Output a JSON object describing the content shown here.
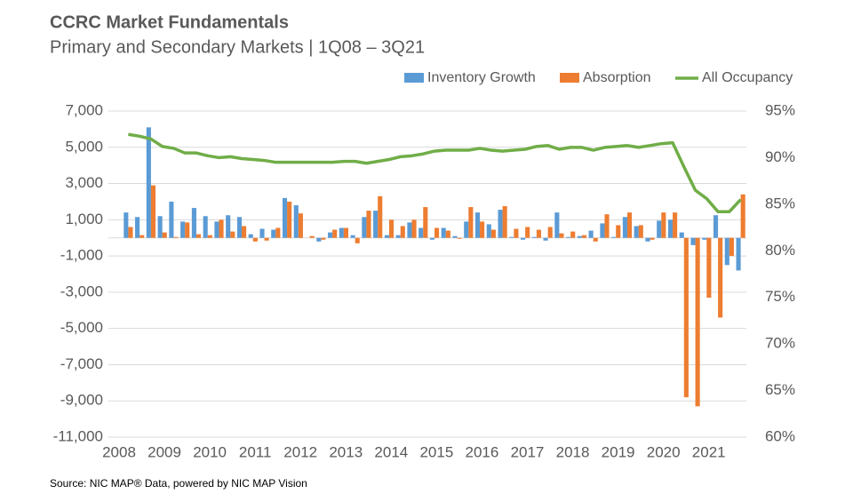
{
  "chart_data": {
    "type": "bar_line",
    "title": "CCRC Market Fundamentals",
    "subtitle": "Primary and Secondary Markets | 1Q08 – 3Q21",
    "source": "Source: NIC MAP® Data, powered by NIC MAP Vision",
    "categories": [
      "2008",
      null,
      null,
      null,
      "2009",
      null,
      null,
      null,
      "2010",
      null,
      null,
      null,
      "2011",
      null,
      null,
      null,
      "2012",
      null,
      null,
      null,
      "2013",
      null,
      null,
      null,
      "2014",
      null,
      null,
      null,
      "2015",
      null,
      null,
      null,
      "2016",
      null,
      null,
      null,
      "2017",
      null,
      null,
      null,
      "2018",
      null,
      null,
      null,
      "2019",
      null,
      null,
      null,
      "2020",
      null,
      null,
      null,
      "2021",
      null,
      null
    ],
    "series": [
      {
        "name": "Inventory Growth",
        "color": "#5b9bd5",
        "type": "bar",
        "values": [
          1400,
          1150,
          6100,
          1200,
          2000,
          900,
          1650,
          1200,
          900,
          1250,
          1150,
          200,
          500,
          450,
          2200,
          1800,
          0,
          -200,
          300,
          550,
          150,
          1150,
          1500,
          150,
          150,
          850,
          550,
          -100,
          550,
          100,
          900,
          1400,
          750,
          1550,
          50,
          -100,
          50,
          -150,
          1400,
          50,
          100,
          400,
          800,
          50,
          1150,
          650,
          -200,
          950,
          1000,
          300,
          -400,
          -100,
          1250,
          -1500,
          -1800
        ]
      },
      {
        "name": "Absorption",
        "color": "#ed7d31",
        "type": "bar",
        "values": [
          600,
          150,
          2900,
          300,
          50,
          850,
          200,
          150,
          1000,
          350,
          650,
          -200,
          -150,
          550,
          2000,
          1350,
          100,
          -100,
          450,
          550,
          -300,
          1500,
          2300,
          1000,
          650,
          1000,
          1700,
          550,
          400,
          -50,
          1700,
          900,
          450,
          1750,
          500,
          600,
          450,
          600,
          250,
          350,
          150,
          -200,
          1300,
          700,
          1400,
          700,
          -100,
          1400,
          1400,
          -8800,
          -9300,
          -3300,
          -4400,
          -1000,
          2400
        ]
      },
      {
        "name": "All Occupancy",
        "color": "#70ad47",
        "type": "line",
        "axis": "y2",
        "values": [
          92.5,
          92.3,
          92.0,
          91.2,
          91.0,
          90.5,
          90.5,
          90.2,
          90.0,
          90.1,
          89.9,
          89.8,
          89.7,
          89.5,
          89.5,
          89.5,
          89.5,
          89.5,
          89.5,
          89.6,
          89.6,
          89.4,
          89.6,
          89.8,
          90.1,
          90.2,
          90.4,
          90.7,
          90.8,
          90.8,
          90.8,
          91.0,
          90.8,
          90.7,
          90.8,
          90.9,
          91.2,
          91.3,
          90.9,
          91.1,
          91.1,
          90.8,
          91.1,
          91.2,
          91.3,
          91.1,
          91.3,
          91.5,
          91.6,
          89.0,
          86.5,
          85.6,
          84.2,
          84.2,
          85.5
        ]
      }
    ],
    "ylim": [
      -11000,
      7000
    ],
    "yticks": [
      {
        "value": -11000,
        "label": "-11,000"
      },
      {
        "value": -9000,
        "label": "-9,000"
      },
      {
        "value": -7000,
        "label": "-7,000"
      },
      {
        "value": -5000,
        "label": "-5,000"
      },
      {
        "value": -3000,
        "label": "-3,000"
      },
      {
        "value": -1000,
        "label": "-1,000"
      },
      {
        "value": 1000,
        "label": "1,000"
      },
      {
        "value": 3000,
        "label": "3,000"
      },
      {
        "value": 5000,
        "label": "5,000"
      },
      {
        "value": 7000,
        "label": "7,000"
      }
    ],
    "y2lim": [
      60,
      95
    ],
    "y2ticks": [
      {
        "value": 60,
        "label": "60%"
      },
      {
        "value": 65,
        "label": "65%"
      },
      {
        "value": 70,
        "label": "70%"
      },
      {
        "value": 75,
        "label": "75%"
      },
      {
        "value": 80,
        "label": "80%"
      },
      {
        "value": 85,
        "label": "85%"
      },
      {
        "value": 90,
        "label": "90%"
      },
      {
        "value": 95,
        "label": "95%"
      }
    ],
    "grid": true,
    "legend": "top-right"
  }
}
